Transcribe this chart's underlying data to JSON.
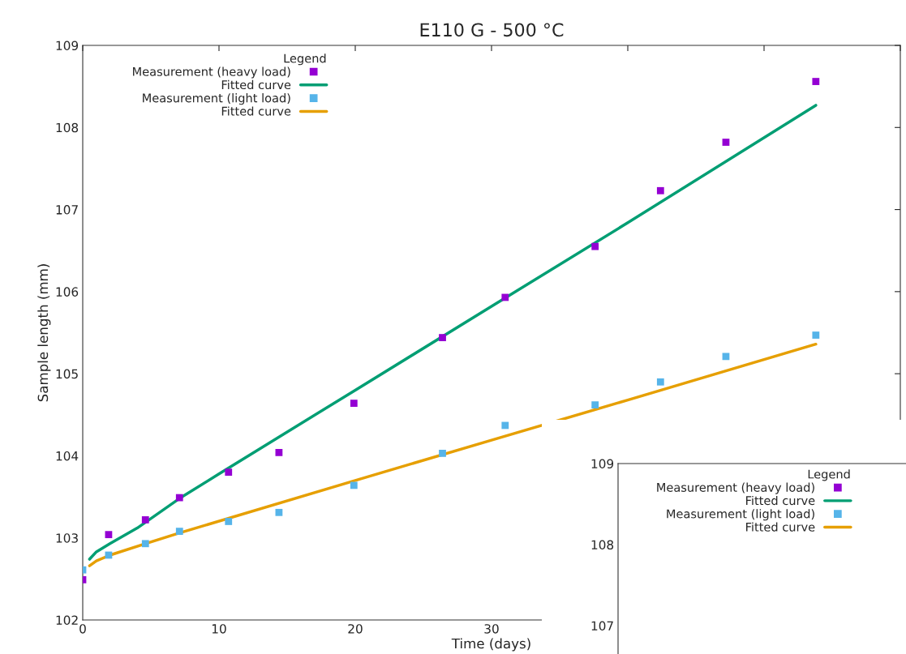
{
  "chart_data": [
    {
      "type": "scatter",
      "title": "E110 G - 500 °C",
      "xlabel": "Time (days)",
      "ylabel": "Sample length (mm)",
      "legend_title": "Legend",
      "xlim": [
        0,
        60
      ],
      "xticks": [
        0,
        10,
        20,
        30,
        {
          "value": 40,
          "label": null
        },
        {
          "value": 50,
          "label": null
        },
        {
          "value": 60,
          "label": null
        }
      ],
      "ylim": [
        102,
        109
      ],
      "yticks": [
        102,
        103,
        104,
        105,
        106,
        107,
        108,
        109
      ],
      "legend": "top left",
      "grid": false,
      "series": [
        {
          "name": "Measurement (heavy load)",
          "marker": "square",
          "color": "#9400d3",
          "x": [
            0,
            1.9,
            4.6,
            7.1,
            10.7,
            14.4,
            19.9,
            26.4,
            31.0,
            37.6,
            42.4,
            47.2,
            53.8
          ],
          "values": [
            102.49,
            103.04,
            103.22,
            103.49,
            103.8,
            104.04,
            104.64,
            105.44,
            105.93,
            106.55,
            107.23,
            107.82,
            108.56
          ]
        },
        {
          "name": "Fitted curve",
          "type": "line",
          "color": "#009e73",
          "x": [
            0.5,
            1,
            2,
            4,
            7.1,
            10,
            20,
            30,
            40,
            53.8
          ],
          "values": [
            102.74,
            102.83,
            102.93,
            103.12,
            103.48,
            103.78,
            104.8,
            105.82,
            106.84,
            108.27
          ]
        },
        {
          "name": "Measurement (light load)",
          "marker": "square",
          "color": "#56b4e9",
          "x": [
            0,
            1.9,
            4.6,
            7.1,
            10.7,
            14.4,
            19.9,
            26.4,
            31.0,
            37.6,
            42.4,
            47.2,
            53.8
          ],
          "values": [
            102.61,
            102.79,
            102.93,
            103.08,
            103.2,
            103.31,
            103.64,
            104.03,
            104.37,
            104.62,
            104.9,
            105.21,
            105.47
          ]
        },
        {
          "name": "Fitted curve",
          "type": "line",
          "color": "#e69f00",
          "x": [
            0.5,
            1,
            2,
            4.6,
            7.1,
            20,
            30,
            40,
            53.8
          ],
          "values": [
            102.66,
            102.72,
            102.79,
            102.93,
            103.06,
            103.7,
            104.19,
            104.68,
            105.36
          ]
        }
      ]
    },
    {
      "type": "scatter",
      "legend_title": "Legend",
      "ylim": [
        106.65,
        109
      ],
      "yticks": [
        107,
        108,
        109
      ],
      "tick_labels": "y",
      "legend": "top",
      "grid": false,
      "series": [
        {
          "name": "Measurement (heavy load)",
          "marker": "square",
          "color": "#9400d3"
        },
        {
          "name": "Fitted curve",
          "type": "line",
          "color": "#009e73"
        },
        {
          "name": "Measurement (light load)",
          "marker": "square",
          "color": "#56b4e9"
        },
        {
          "name": "Fitted curve",
          "type": "line",
          "color": "#e69f00"
        }
      ]
    }
  ]
}
